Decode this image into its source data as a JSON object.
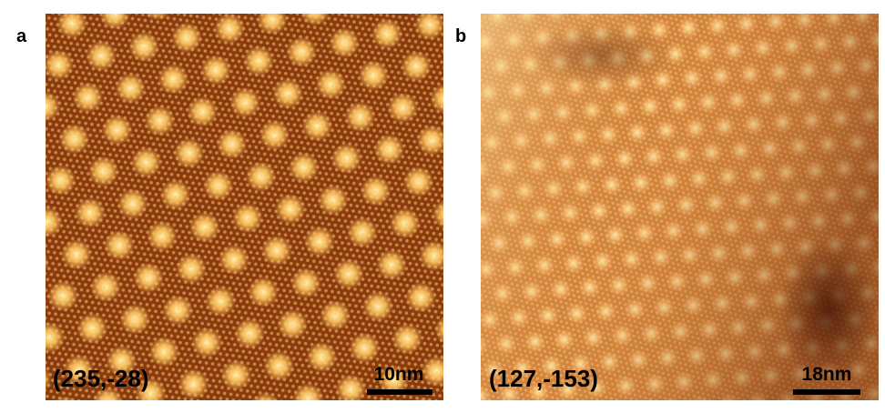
{
  "panels": [
    {
      "label": "a",
      "coordinates": "(235,-28)",
      "scale_bar": "10nm"
    },
    {
      "label": "b",
      "coordinates": "(127,-153)",
      "scale_bar": "18nm"
    }
  ]
}
